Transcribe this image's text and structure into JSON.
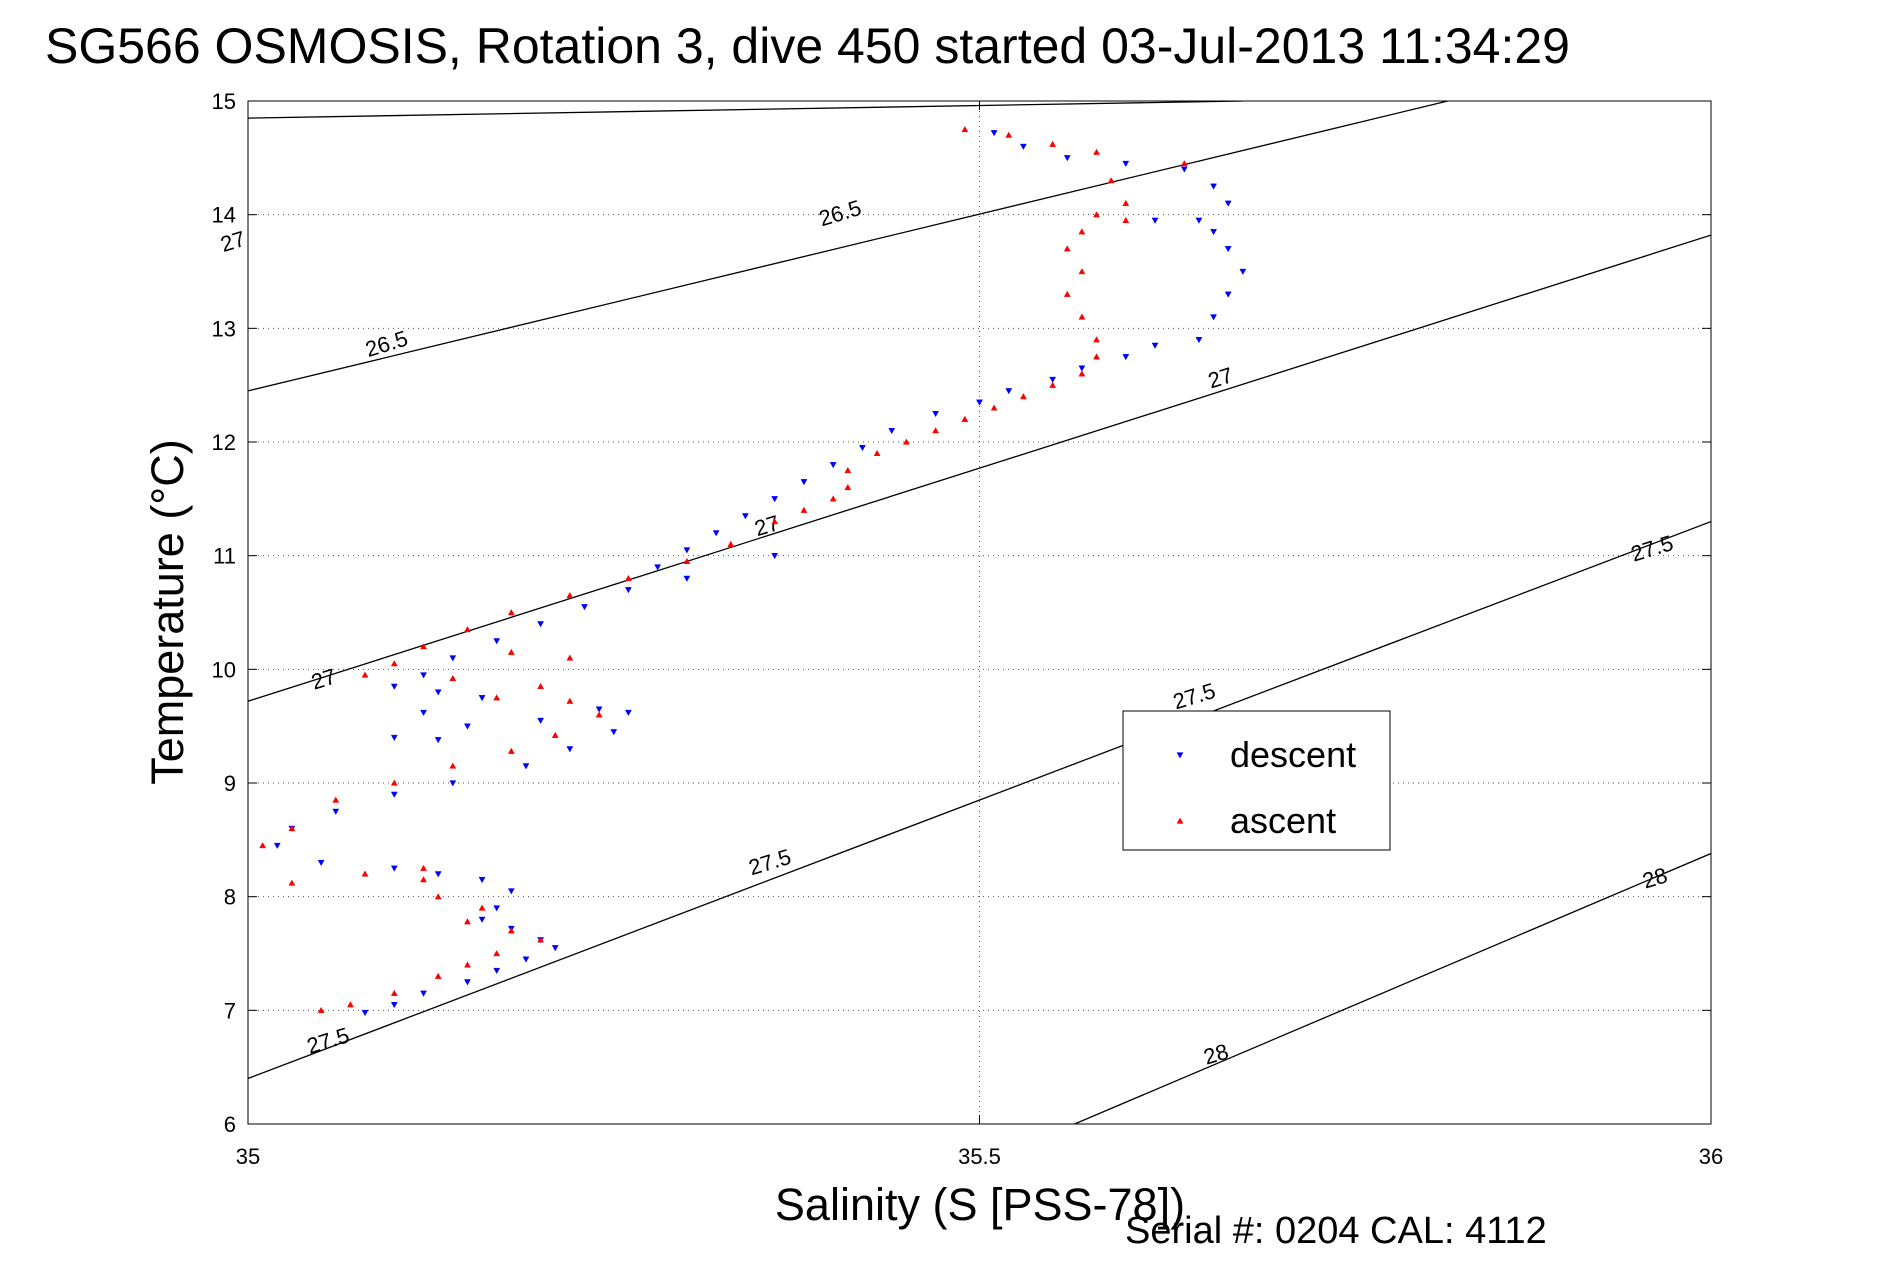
{
  "chart_data": {
    "type": "scatter",
    "title": "SG566 OSMOSIS, Rotation 3, dive 450 started 03-Jul-2013 11:34:29",
    "xlabel": "Salinity (S [PSS-78])",
    "ylabel": "Temperature (°C)",
    "xlim": [
      35,
      36
    ],
    "ylim": [
      6,
      15
    ],
    "xticks": [
      35,
      35.5,
      36
    ],
    "xtick_labels": [
      "35",
      "35.5",
      "36"
    ],
    "yticks": [
      6,
      7,
      8,
      9,
      10,
      11,
      12,
      13,
      14,
      15
    ],
    "ytick_labels": [
      "6",
      "7",
      "8",
      "9",
      "10",
      "11",
      "12",
      "13",
      "14",
      "15"
    ],
    "grid": true,
    "legend_position": "center-right",
    "footer": "Serial #: 0204  CAL: 4112",
    "colors": {
      "descent": "#0000ff",
      "ascent": "#ff0000",
      "contour": "#000000"
    },
    "density_contours": [
      {
        "label": "26.5",
        "points": [
          [
            35.0,
            14.85
          ],
          [
            35.68,
            15.0
          ]
        ]
      },
      {
        "label": "26.5",
        "points": [
          [
            35.0,
            12.45
          ],
          [
            35.82,
            15.0
          ]
        ]
      },
      {
        "label": "27",
        "points": [
          [
            35.0,
            9.72
          ],
          [
            36.0,
            13.82
          ]
        ]
      },
      {
        "label": "27.5",
        "points": [
          [
            35.0,
            6.4
          ],
          [
            36.0,
            11.3
          ]
        ]
      },
      {
        "label": "28",
        "points": [
          [
            35.565,
            6.0
          ],
          [
            36.0,
            8.38
          ]
        ]
      }
    ],
    "contour_labels": [
      {
        "text": "26.5",
        "x": 35.405,
        "y": 14.0
      },
      {
        "text": "26.5",
        "x": 35.095,
        "y": 12.85
      },
      {
        "text": "27",
        "x": 34.99,
        "y": 13.75
      },
      {
        "text": "27",
        "x": 35.665,
        "y": 12.55
      },
      {
        "text": "27",
        "x": 35.355,
        "y": 11.25
      },
      {
        "text": "27",
        "x": 35.052,
        "y": 9.9
      },
      {
        "text": "27.5",
        "x": 35.96,
        "y": 11.05
      },
      {
        "text": "27.5",
        "x": 35.647,
        "y": 9.75
      },
      {
        "text": "27.5",
        "x": 35.357,
        "y": 8.29
      },
      {
        "text": "27.5",
        "x": 35.055,
        "y": 6.72
      },
      {
        "text": "28",
        "x": 35.962,
        "y": 8.15
      },
      {
        "text": "28",
        "x": 35.662,
        "y": 6.6
      }
    ],
    "series": [
      {
        "name": "descent",
        "marker": "triangle-down",
        "points": [
          [
            35.51,
            14.72
          ],
          [
            35.53,
            14.6
          ],
          [
            35.56,
            14.5
          ],
          [
            35.6,
            14.45
          ],
          [
            35.64,
            14.4
          ],
          [
            35.66,
            14.25
          ],
          [
            35.67,
            14.1
          ],
          [
            35.65,
            13.95
          ],
          [
            35.62,
            13.95
          ],
          [
            35.66,
            13.85
          ],
          [
            35.67,
            13.7
          ],
          [
            35.68,
            13.5
          ],
          [
            35.67,
            13.3
          ],
          [
            35.66,
            13.1
          ],
          [
            35.65,
            12.9
          ],
          [
            35.62,
            12.85
          ],
          [
            35.6,
            12.75
          ],
          [
            35.57,
            12.65
          ],
          [
            35.55,
            12.55
          ],
          [
            35.52,
            12.45
          ],
          [
            35.5,
            12.35
          ],
          [
            35.47,
            12.25
          ],
          [
            35.44,
            12.1
          ],
          [
            35.42,
            11.95
          ],
          [
            35.4,
            11.8
          ],
          [
            35.38,
            11.65
          ],
          [
            35.36,
            11.5
          ],
          [
            35.34,
            11.35
          ],
          [
            35.32,
            11.2
          ],
          [
            35.3,
            11.05
          ],
          [
            35.28,
            10.9
          ],
          [
            35.36,
            11.0
          ],
          [
            35.3,
            10.8
          ],
          [
            35.26,
            10.7
          ],
          [
            35.23,
            10.55
          ],
          [
            35.2,
            10.4
          ],
          [
            35.17,
            10.25
          ],
          [
            35.14,
            10.1
          ],
          [
            35.12,
            9.95
          ],
          [
            35.1,
            9.85
          ],
          [
            35.13,
            9.8
          ],
          [
            35.16,
            9.75
          ],
          [
            35.12,
            9.62
          ],
          [
            35.15,
            9.5
          ],
          [
            35.1,
            9.4
          ],
          [
            35.13,
            9.38
          ],
          [
            35.2,
            9.55
          ],
          [
            35.24,
            9.65
          ],
          [
            35.26,
            9.62
          ],
          [
            35.25,
            9.45
          ],
          [
            35.22,
            9.3
          ],
          [
            35.19,
            9.15
          ],
          [
            35.14,
            9.0
          ],
          [
            35.1,
            8.9
          ],
          [
            35.06,
            8.75
          ],
          [
            35.03,
            8.6
          ],
          [
            35.02,
            8.45
          ],
          [
            35.05,
            8.3
          ],
          [
            35.1,
            8.25
          ],
          [
            35.13,
            8.2
          ],
          [
            35.16,
            8.15
          ],
          [
            35.18,
            8.05
          ],
          [
            35.17,
            7.9
          ],
          [
            35.16,
            7.8
          ],
          [
            35.18,
            7.72
          ],
          [
            35.2,
            7.62
          ],
          [
            35.21,
            7.55
          ],
          [
            35.19,
            7.45
          ],
          [
            35.17,
            7.35
          ],
          [
            35.15,
            7.25
          ],
          [
            35.12,
            7.15
          ],
          [
            35.1,
            7.05
          ],
          [
            35.08,
            6.98
          ]
        ]
      },
      {
        "name": "ascent",
        "marker": "triangle-up",
        "points": [
          [
            35.49,
            14.75
          ],
          [
            35.52,
            14.7
          ],
          [
            35.55,
            14.62
          ],
          [
            35.58,
            14.55
          ],
          [
            35.64,
            14.45
          ],
          [
            35.59,
            14.3
          ],
          [
            35.6,
            14.1
          ],
          [
            35.58,
            14.0
          ],
          [
            35.6,
            13.95
          ],
          [
            35.57,
            13.85
          ],
          [
            35.56,
            13.7
          ],
          [
            35.57,
            13.5
          ],
          [
            35.56,
            13.3
          ],
          [
            35.57,
            13.1
          ],
          [
            35.58,
            12.9
          ],
          [
            35.58,
            12.75
          ],
          [
            35.57,
            12.6
          ],
          [
            35.55,
            12.5
          ],
          [
            35.53,
            12.4
          ],
          [
            35.51,
            12.3
          ],
          [
            35.49,
            12.2
          ],
          [
            35.47,
            12.1
          ],
          [
            35.45,
            12.0
          ],
          [
            35.43,
            11.9
          ],
          [
            35.41,
            11.75
          ],
          [
            35.41,
            11.6
          ],
          [
            35.4,
            11.5
          ],
          [
            35.38,
            11.4
          ],
          [
            35.36,
            11.3
          ],
          [
            35.33,
            11.1
          ],
          [
            35.3,
            10.95
          ],
          [
            35.26,
            10.8
          ],
          [
            35.22,
            10.65
          ],
          [
            35.18,
            10.5
          ],
          [
            35.15,
            10.35
          ],
          [
            35.12,
            10.2
          ],
          [
            35.1,
            10.05
          ],
          [
            35.08,
            9.95
          ],
          [
            35.18,
            10.15
          ],
          [
            35.22,
            10.1
          ],
          [
            35.14,
            9.92
          ],
          [
            35.2,
            9.85
          ],
          [
            35.17,
            9.75
          ],
          [
            35.22,
            9.72
          ],
          [
            35.24,
            9.6
          ],
          [
            35.21,
            9.42
          ],
          [
            35.18,
            9.28
          ],
          [
            35.14,
            9.15
          ],
          [
            35.1,
            9.0
          ],
          [
            35.06,
            8.85
          ],
          [
            35.03,
            8.6
          ],
          [
            35.01,
            8.45
          ],
          [
            34.99,
            8.25
          ],
          [
            34.98,
            8.12
          ],
          [
            35.03,
            8.12
          ],
          [
            35.08,
            8.2
          ],
          [
            35.12,
            8.25
          ],
          [
            35.12,
            8.15
          ],
          [
            35.13,
            8.0
          ],
          [
            35.16,
            7.9
          ],
          [
            35.15,
            7.78
          ],
          [
            35.18,
            7.7
          ],
          [
            35.2,
            7.62
          ],
          [
            35.17,
            7.5
          ],
          [
            35.15,
            7.4
          ],
          [
            35.13,
            7.3
          ],
          [
            35.1,
            7.15
          ],
          [
            35.07,
            7.05
          ],
          [
            35.05,
            7.0
          ]
        ]
      }
    ]
  }
}
